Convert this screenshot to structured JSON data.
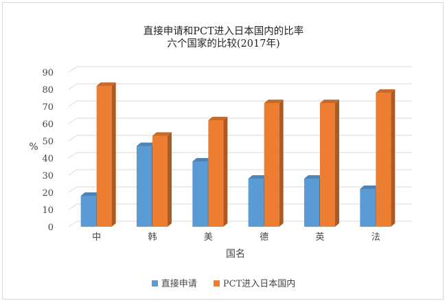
{
  "chart_data": {
    "type": "bar",
    "title": "直接申请和PCT进入日本国内的比率",
    "subtitle": "六个国家的比较(2017年)",
    "ylabel": "%",
    "xlabel": "国名",
    "ylim": [
      0,
      90
    ],
    "yticks": [
      0,
      10,
      20,
      30,
      40,
      50,
      60,
      70,
      80,
      90
    ],
    "grid": true,
    "legend_position": "bottom",
    "categories": [
      "中",
      "韩",
      "美",
      "德",
      "英",
      "法"
    ],
    "series": [
      {
        "name": "直接申请",
        "values": [
          18,
          47,
          38,
          28,
          28,
          22
        ],
        "color": "#5b9bd5"
      },
      {
        "name": "PCT进入日本国内",
        "values": [
          82,
          53,
          62,
          72,
          72,
          78
        ],
        "color": "#ed7d31"
      }
    ]
  }
}
